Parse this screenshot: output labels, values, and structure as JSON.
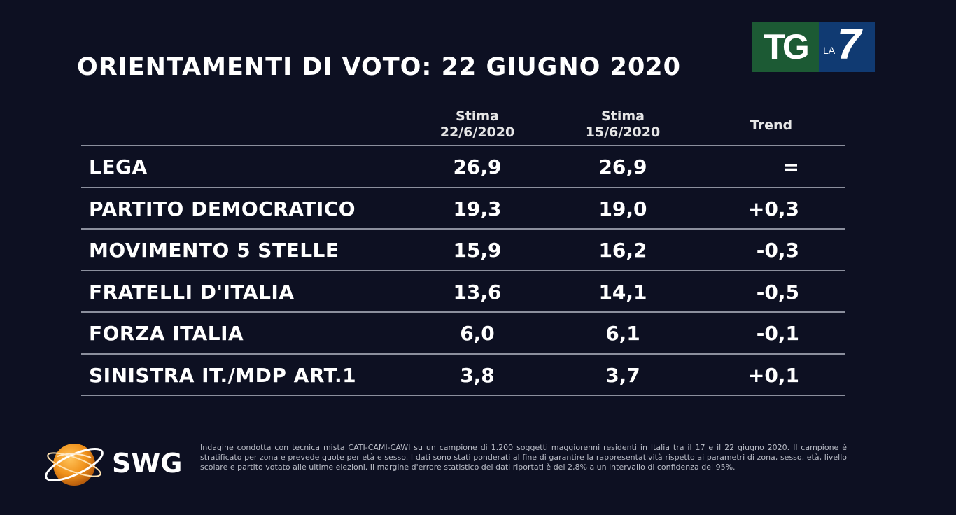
{
  "title": "ORIENTAMENTI DI VOTO: 22 GIUGNO 2020",
  "logo": {
    "tg": "TG",
    "la": "LA",
    "seven": "7"
  },
  "chart_data": {
    "type": "table",
    "title": "ORIENTAMENTI DI VOTO: 22 GIUGNO 2020",
    "columns": [
      {
        "line1": "Stima",
        "line2": "22/6/2020"
      },
      {
        "line1": "Stima",
        "line2": "15/6/2020"
      },
      {
        "line1": "Trend",
        "line2": ""
      }
    ],
    "rows": [
      {
        "party": "LEGA",
        "v1": "26,9",
        "v2": "26,9",
        "trend": "="
      },
      {
        "party": "PARTITO DEMOCRATICO",
        "v1": "19,3",
        "v2": "19,0",
        "trend": "+0,3"
      },
      {
        "party": "MOVIMENTO 5 STELLE",
        "v1": "15,9",
        "v2": "16,2",
        "trend": "-0,3"
      },
      {
        "party": "FRATELLI D'ITALIA",
        "v1": "13,6",
        "v2": "14,1",
        "trend": "-0,5"
      },
      {
        "party": "FORZA ITALIA",
        "v1": "6,0",
        "v2": "6,1",
        "trend": "-0,1"
      },
      {
        "party": "SINISTRA IT./MDP ART.1",
        "v1": "3,8",
        "v2": "3,7",
        "trend": "+0,1"
      }
    ]
  },
  "footer": {
    "brand": "SWG",
    "note": "Indagine condotta con tecnica mista CATI-CAMI-CAWI su un campione di 1.200 soggetti maggiorenni residenti in Italia tra il 17 e il 22 giugno 2020. Il campione è stratificato per zona e prevede quote per età e sesso. I dati sono stati ponderati al fine di garantire la rappresentatività rispetto ai parametri di zona, sesso, età, livello scolare e partito votato alle ultime elezioni. Il margine d'errore statistico dei dati riportati è del 2,8% a un intervallo di confidenza del 95%."
  },
  "colors": {
    "background": "#0d1022",
    "tg_green": "#1c5a34",
    "la7_blue": "#103a72",
    "swg_orange": "#f0921c"
  }
}
